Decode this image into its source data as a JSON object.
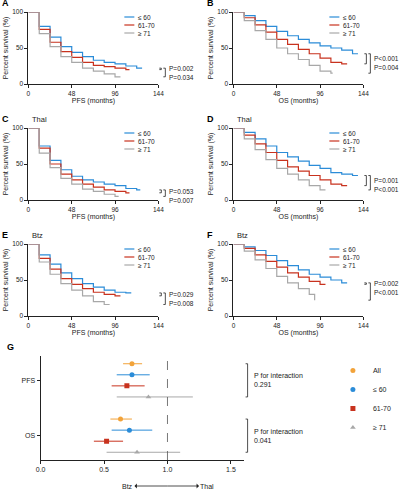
{
  "chart_data": [
    {
      "type": "step",
      "label": "A",
      "xlabel": "PFS (months)",
      "ylabel": "Percent survival (%)",
      "xlim": [
        0,
        144
      ],
      "xticks": [
        0,
        48,
        96,
        144
      ],
      "ylim": [
        0,
        100
      ],
      "yticks": [
        0,
        50,
        100
      ],
      "series": [
        {
          "name": "≤ 60",
          "color": "#2b8cd8",
          "x": [
            0,
            12,
            24,
            36,
            48,
            60,
            72,
            84,
            96,
            108,
            120,
            126
          ],
          "values": [
            100,
            80,
            65,
            52,
            44,
            38,
            33,
            30,
            28,
            25,
            22,
            22
          ]
        },
        {
          "name": "61-70",
          "color": "#c8321e",
          "x": [
            0,
            12,
            24,
            36,
            48,
            60,
            72,
            84,
            96,
            108,
            112
          ],
          "values": [
            100,
            76,
            58,
            45,
            37,
            30,
            26,
            24,
            22,
            20,
            20
          ]
        },
        {
          "name": "≥ 71",
          "color": "#a8a8a8",
          "x": [
            0,
            12,
            24,
            36,
            48,
            60,
            72,
            84,
            96,
            102
          ],
          "values": [
            100,
            70,
            52,
            38,
            30,
            22,
            18,
            14,
            10,
            10
          ]
        }
      ],
      "annotations": [
        "P=0.002",
        "P=0.034"
      ]
    },
    {
      "type": "step",
      "label": "B",
      "xlabel": "OS (months)",
      "ylabel": "Percent survival (%)",
      "xlim": [
        0,
        144
      ],
      "xticks": [
        0,
        48,
        96,
        144
      ],
      "ylim": [
        0,
        100
      ],
      "yticks": [
        0,
        50,
        100
      ],
      "series": [
        {
          "name": "≤ 60",
          "color": "#2b8cd8",
          "x": [
            0,
            12,
            24,
            36,
            48,
            60,
            72,
            84,
            96,
            108,
            120,
            132,
            138
          ],
          "values": [
            100,
            95,
            88,
            80,
            73,
            67,
            62,
            57,
            53,
            50,
            47,
            42,
            42
          ]
        },
        {
          "name": "61-70",
          "color": "#c8321e",
          "x": [
            0,
            12,
            24,
            36,
            48,
            60,
            72,
            84,
            96,
            108,
            120,
            126
          ],
          "values": [
            100,
            92,
            82,
            72,
            62,
            55,
            48,
            42,
            36,
            30,
            28,
            28
          ]
        },
        {
          "name": "≥ 71",
          "color": "#a8a8a8",
          "x": [
            0,
            12,
            24,
            36,
            48,
            60,
            72,
            84,
            96,
            108,
            110
          ],
          "values": [
            100,
            88,
            74,
            62,
            50,
            42,
            34,
            26,
            18,
            15,
            15
          ]
        }
      ],
      "annotations": [
        "P<0.001",
        "P=0.004"
      ]
    },
    {
      "type": "step",
      "label": "C",
      "title": "Thal",
      "xlabel": "PFS (months)",
      "ylabel": "Percent survival (%)",
      "xlim": [
        0,
        144
      ],
      "xticks": [
        0,
        48,
        96,
        144
      ],
      "ylim": [
        0,
        100
      ],
      "yticks": [
        0,
        50,
        100
      ],
      "series": [
        {
          "name": "≤ 60",
          "color": "#2b8cd8",
          "x": [
            0,
            12,
            24,
            36,
            48,
            60,
            72,
            84,
            96,
            108,
            120,
            124
          ],
          "values": [
            100,
            75,
            55,
            42,
            33,
            28,
            25,
            22,
            20,
            16,
            14,
            14
          ]
        },
        {
          "name": "61-70",
          "color": "#c8321e",
          "x": [
            0,
            12,
            24,
            36,
            48,
            60,
            72,
            84,
            96,
            108,
            112
          ],
          "values": [
            100,
            72,
            50,
            36,
            28,
            22,
            18,
            14,
            12,
            10,
            10
          ]
        },
        {
          "name": "≥ 71",
          "color": "#a8a8a8",
          "x": [
            0,
            12,
            24,
            36,
            48,
            60,
            72,
            84,
            96,
            100
          ],
          "values": [
            100,
            65,
            45,
            30,
            22,
            15,
            12,
            8,
            5,
            5
          ]
        }
      ],
      "annotations": [
        "P=0.053",
        "P=0.007"
      ]
    },
    {
      "type": "step",
      "label": "D",
      "title": "Thal",
      "xlabel": "OS (months)",
      "ylabel": "Percent survival (%)",
      "xlim": [
        0,
        144
      ],
      "xticks": [
        0,
        48,
        96,
        144
      ],
      "ylim": [
        0,
        100
      ],
      "yticks": [
        0,
        50,
        100
      ],
      "series": [
        {
          "name": "≤ 60",
          "color": "#2b8cd8",
          "x": [
            0,
            12,
            24,
            36,
            48,
            60,
            72,
            84,
            96,
            108,
            120,
            132,
            138
          ],
          "values": [
            100,
            94,
            85,
            75,
            66,
            60,
            54,
            48,
            44,
            38,
            36,
            34,
            34
          ]
        },
        {
          "name": "61-70",
          "color": "#c8321e",
          "x": [
            0,
            12,
            24,
            36,
            48,
            60,
            72,
            84,
            96,
            108,
            120,
            126
          ],
          "values": [
            100,
            90,
            78,
            66,
            55,
            46,
            40,
            34,
            28,
            22,
            20,
            20
          ]
        },
        {
          "name": "≥ 71",
          "color": "#a8a8a8",
          "x": [
            0,
            12,
            24,
            36,
            48,
            60,
            72,
            84,
            96,
            102
          ],
          "values": [
            100,
            85,
            70,
            56,
            44,
            36,
            28,
            20,
            14,
            14
          ]
        }
      ],
      "annotations": [
        "P=0.001",
        "P<0.001"
      ]
    },
    {
      "type": "step",
      "label": "E",
      "title": "Btz",
      "xlabel": "PFS (months)",
      "ylabel": "Percent survival (%)",
      "xlim": [
        0,
        144
      ],
      "xticks": [
        0,
        48,
        96,
        144
      ],
      "ylim": [
        0,
        100
      ],
      "yticks": [
        0,
        50,
        100
      ],
      "series": [
        {
          "name": "≤ 60",
          "color": "#2b8cd8",
          "x": [
            0,
            12,
            24,
            36,
            48,
            60,
            72,
            84,
            96,
            108,
            114
          ],
          "values": [
            100,
            85,
            72,
            60,
            52,
            45,
            40,
            36,
            33,
            32,
            32
          ]
        },
        {
          "name": "61-70",
          "color": "#c8321e",
          "x": [
            0,
            12,
            24,
            36,
            48,
            60,
            72,
            84,
            96,
            102
          ],
          "values": [
            100,
            80,
            65,
            52,
            44,
            38,
            33,
            30,
            28,
            28
          ]
        },
        {
          "name": "≥ 71",
          "color": "#a8a8a8",
          "x": [
            0,
            12,
            24,
            36,
            48,
            60,
            72,
            84,
            90
          ],
          "values": [
            100,
            75,
            58,
            45,
            36,
            28,
            20,
            16,
            16
          ]
        }
      ],
      "annotations": [
        "P=0.029",
        "P=0.008"
      ]
    },
    {
      "type": "step",
      "label": "F",
      "title": "Btz",
      "xlabel": "OS (months)",
      "ylabel": "Percent survival (%)",
      "xlim": [
        0,
        144
      ],
      "xticks": [
        0,
        48,
        96,
        144
      ],
      "ylim": [
        0,
        100
      ],
      "yticks": [
        0,
        50,
        100
      ],
      "series": [
        {
          "name": "≤ 60",
          "color": "#2b8cd8",
          "x": [
            0,
            12,
            24,
            36,
            48,
            60,
            72,
            84,
            96,
            108,
            120,
            126
          ],
          "values": [
            100,
            96,
            91,
            84,
            77,
            70,
            64,
            58,
            54,
            50,
            46,
            46
          ]
        },
        {
          "name": "61-70",
          "color": "#c8321e",
          "x": [
            0,
            12,
            24,
            36,
            48,
            60,
            72,
            84,
            96,
            102
          ],
          "values": [
            100,
            94,
            85,
            76,
            68,
            60,
            54,
            48,
            44,
            44
          ]
        },
        {
          "name": "≥ 71",
          "color": "#a8a8a8",
          "x": [
            0,
            12,
            24,
            36,
            48,
            60,
            72,
            84,
            90
          ],
          "values": [
            100,
            90,
            78,
            66,
            55,
            46,
            38,
            30,
            22
          ]
        }
      ],
      "annotations": [
        "P=0.002",
        "P<0.001"
      ]
    },
    {
      "type": "forest",
      "label": "G",
      "categories": [
        "PFS",
        "OS"
      ],
      "xlim": [
        0,
        1.6
      ],
      "xticks": [
        {
          "value": 0,
          "label": "0.0"
        },
        {
          "value": 0.5,
          "label": "0.5"
        },
        {
          "value": 1,
          "label": "1.0"
        },
        {
          "value": 1.5,
          "label": "1.5"
        }
      ],
      "reference_line": 1,
      "series": [
        {
          "name": "All",
          "color": "#f2a33a",
          "marker": "circle",
          "values": [
            0.72,
            0.63
          ],
          "lower": [
            0.65,
            0.55
          ],
          "upper": [
            0.8,
            0.72
          ]
        },
        {
          "name": "≤ 60",
          "color": "#2b8cd8",
          "marker": "circle",
          "values": [
            0.72,
            0.7
          ],
          "lower": [
            0.6,
            0.56
          ],
          "upper": [
            0.86,
            0.88
          ]
        },
        {
          "name": "61-70",
          "color": "#c8321e",
          "marker": "square",
          "values": [
            0.68,
            0.52
          ],
          "lower": [
            0.56,
            0.42
          ],
          "upper": [
            0.82,
            0.65
          ]
        },
        {
          "name": "≥ 71",
          "color": "#a8a8a8",
          "marker": "triangle-up",
          "values": [
            0.85,
            0.76
          ],
          "lower": [
            0.6,
            0.52
          ],
          "upper": [
            1.2,
            1.1
          ]
        }
      ],
      "annotations": [
        "P for interaction\n0.291",
        "P for interaction\n0.041"
      ],
      "direction_labels": [
        "Btz",
        "Thal"
      ]
    }
  ]
}
